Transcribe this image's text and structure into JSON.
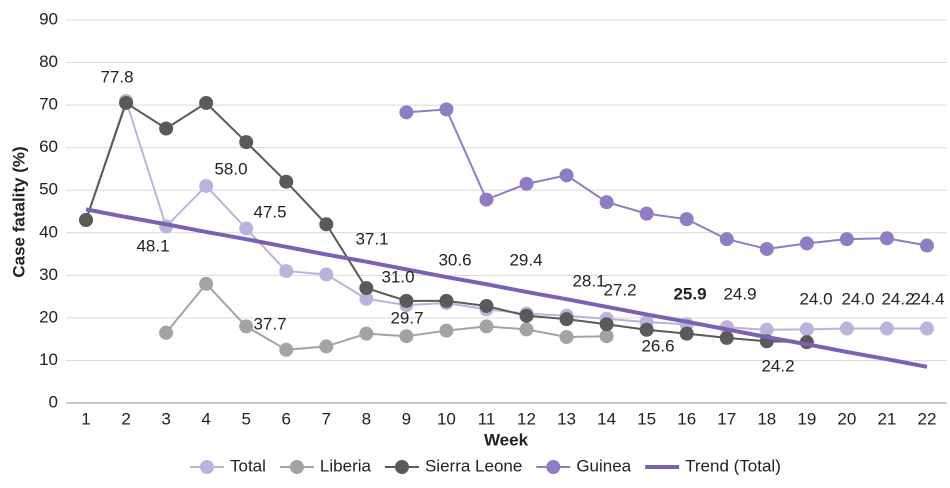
{
  "chart_data": {
    "type": "line",
    "ylabel": "Case fatality (%)",
    "xlabel": "Week",
    "categories": [
      "1",
      "2",
      "3",
      "4",
      "5",
      "6",
      "7",
      "8",
      "9",
      "10",
      "11",
      "12",
      "13",
      "14",
      "15",
      "16",
      "17",
      "18",
      "19",
      "20",
      "21",
      "22"
    ],
    "ylim": [
      0,
      90
    ],
    "yticks": [
      0,
      10,
      20,
      30,
      40,
      50,
      60,
      70,
      80,
      90
    ],
    "grid": true,
    "legend": "bottom",
    "series": [
      {
        "name": "Total",
        "color": "#bab3db",
        "markers": true,
        "values": [
          43,
          71,
          41.5,
          51,
          41,
          31,
          30.2,
          24.5,
          23,
          23.5,
          22,
          21,
          20.5,
          19.8,
          19,
          18.5,
          17.8,
          17.2,
          17.3,
          17.5,
          17.5,
          17.5
        ]
      },
      {
        "name": "Liberia",
        "color": "#a3a3a3",
        "markers": true,
        "values": [
          null,
          null,
          16.5,
          28,
          18,
          12.5,
          13.3,
          16.3,
          15.7,
          17,
          18,
          17.3,
          15.5,
          15.7,
          null,
          null,
          null,
          null,
          null,
          null,
          null,
          null
        ]
      },
      {
        "name": "Sierra Leone",
        "color": "#5a5a5a",
        "markers": true,
        "values": [
          43,
          70.5,
          64.5,
          70.5,
          61.3,
          52,
          42,
          27,
          24,
          24,
          22.8,
          20.5,
          19.7,
          18.5,
          17.2,
          16.3,
          15.3,
          14.5,
          14.3,
          null,
          null,
          null
        ]
      },
      {
        "name": "Guinea",
        "color": "#8f7dc4",
        "markers": true,
        "values": [
          null,
          null,
          null,
          null,
          null,
          null,
          null,
          null,
          68.3,
          69,
          47.8,
          51.5,
          53.5,
          47.2,
          44.5,
          43.2,
          38.5,
          36.2,
          37.5,
          38.5,
          38.7,
          37
        ]
      },
      {
        "name": "Trend (Total)",
        "color": "#7a61b1",
        "markers": false,
        "values": [
          45.5,
          43.7,
          42.0,
          40.2,
          38.5,
          36.7,
          34.9,
          33.2,
          31.4,
          29.6,
          27.9,
          26.1,
          24.4,
          22.6,
          20.8,
          19.1,
          17.3,
          15.5,
          13.8,
          12.0,
          10.3,
          8.5
        ]
      }
    ],
    "annotations": [
      "77.8",
      "48.1",
      "58.0",
      "47.5",
      "37.7",
      "37.1",
      "31.0",
      "29.7",
      "30.6",
      "29.4",
      "28.1",
      "27.2",
      "25.9",
      "24.9",
      "26.6",
      "24.2",
      "24.0",
      "24.0",
      "24.2",
      "24.4"
    ]
  }
}
